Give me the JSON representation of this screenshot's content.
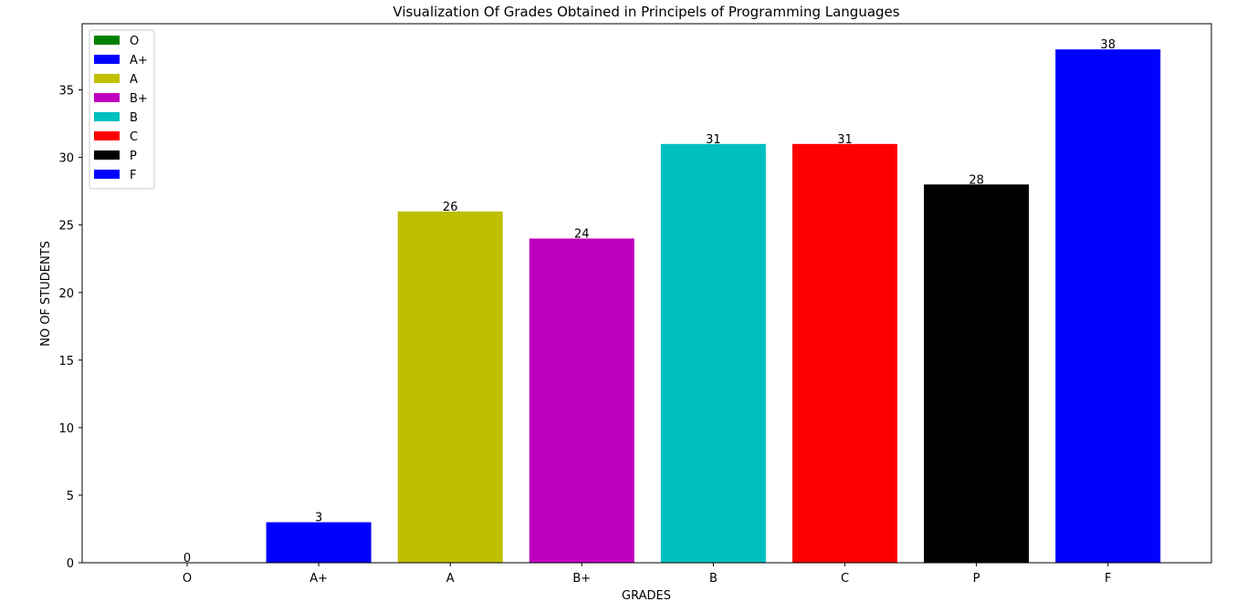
{
  "chart_data": {
    "type": "bar",
    "title": "Visualization Of Grades Obtained in Principels of Programming Languages",
    "xlabel": "GRADES",
    "ylabel": "NO OF STUDENTS",
    "categories": [
      "O",
      "A+",
      "A",
      "B+",
      "B",
      "C",
      "P",
      "F"
    ],
    "values": [
      0,
      3,
      26,
      24,
      31,
      31,
      28,
      38
    ],
    "colors": [
      "#008000",
      "#0000ff",
      "#bfbf00",
      "#bf00bf",
      "#00bfbf",
      "#ff0000",
      "#000000",
      "#0000ff"
    ],
    "ylim": [
      0,
      39.9
    ],
    "yticks": [
      0,
      5,
      10,
      15,
      20,
      25,
      30,
      35
    ],
    "grid": false,
    "legend_position": "upper-left",
    "legend": [
      {
        "label": "O",
        "color": "#008000"
      },
      {
        "label": "A+",
        "color": "#0000ff"
      },
      {
        "label": "A",
        "color": "#bfbf00"
      },
      {
        "label": "B+",
        "color": "#bf00bf"
      },
      {
        "label": "B",
        "color": "#00bfbf"
      },
      {
        "label": "C",
        "color": "#ff0000"
      },
      {
        "label": "P",
        "color": "#000000"
      },
      {
        "label": "F",
        "color": "#0000ff"
      }
    ]
  }
}
